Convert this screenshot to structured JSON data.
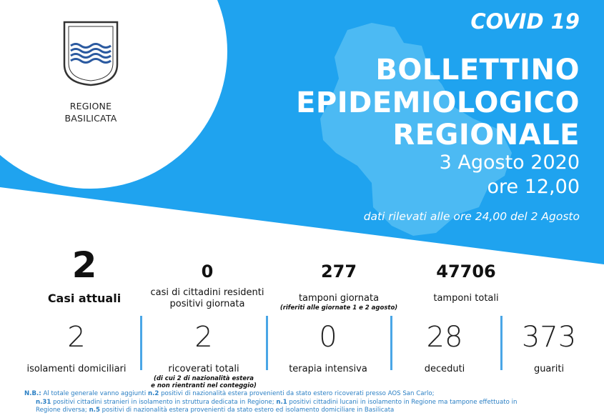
{
  "header": {
    "region_line1": "REGIONE",
    "region_line2": "BASILICATA",
    "covid": "COVID 19",
    "title_line1": "BOLLETTINO",
    "title_line2": "EPIDEMIOLOGICO",
    "title_line3": "REGIONALE",
    "date": "3 Agosto 2020",
    "time": "ore 12,00",
    "data_note": "dati rilevati alle ore 24,00 del 2 Agosto",
    "colors": {
      "blue": "#1fa3ef",
      "map": "#5cc2f4",
      "white": "#ffffff"
    }
  },
  "stats_top": {
    "casi_attuali": {
      "value": "2",
      "label": "Casi attuali"
    },
    "casi_residenti": {
      "value": "0",
      "label1": "casi di cittadini residenti",
      "label2": "positivi giornata"
    },
    "tamponi_giornata": {
      "value": "277",
      "label": "tamponi giornata",
      "sub": "(riferiti alle giornate 1 e 2 agosto)"
    },
    "tamponi_totali": {
      "value": "47706",
      "label": "tamponi totali"
    }
  },
  "stats_bottom": {
    "isolamenti": {
      "value": "2",
      "label": "isolamenti domiciliari"
    },
    "ricoverati": {
      "value": "2",
      "label": "ricoverati totali",
      "sub1": "(di cui 2 di nazionalità estera",
      "sub2": "e non rientranti nel conteggio)"
    },
    "terapia": {
      "value": "0",
      "label": "terapia intensiva"
    },
    "deceduti": {
      "value": "28",
      "label": "deceduti"
    },
    "guariti": {
      "value": "373",
      "label": "guariti"
    }
  },
  "notes": {
    "nb_label": "N.B.:",
    "l1_a": " Al totale generale vanno aggiunti ",
    "l1_b": "n.2",
    "l1_c": " positivi di nazionalità estera provenienti da stato estero ricoverati presso AOS San Carlo;",
    "l2_a": "n.31",
    "l2_b": " positivi cittadini stranieri in isolamento in struttura dedicata in Regione; ",
    "l2_c": "n.1",
    "l2_d": " positivi cittadini lucani in isolamento in Regione ma tampone effettuato in",
    "l3_a": "Regione diversa; ",
    "l3_b": "n.5",
    "l3_c": " positivi di nazionalità estera provenienti da stato estero ed isolamento domiciliare in Basilicata"
  }
}
